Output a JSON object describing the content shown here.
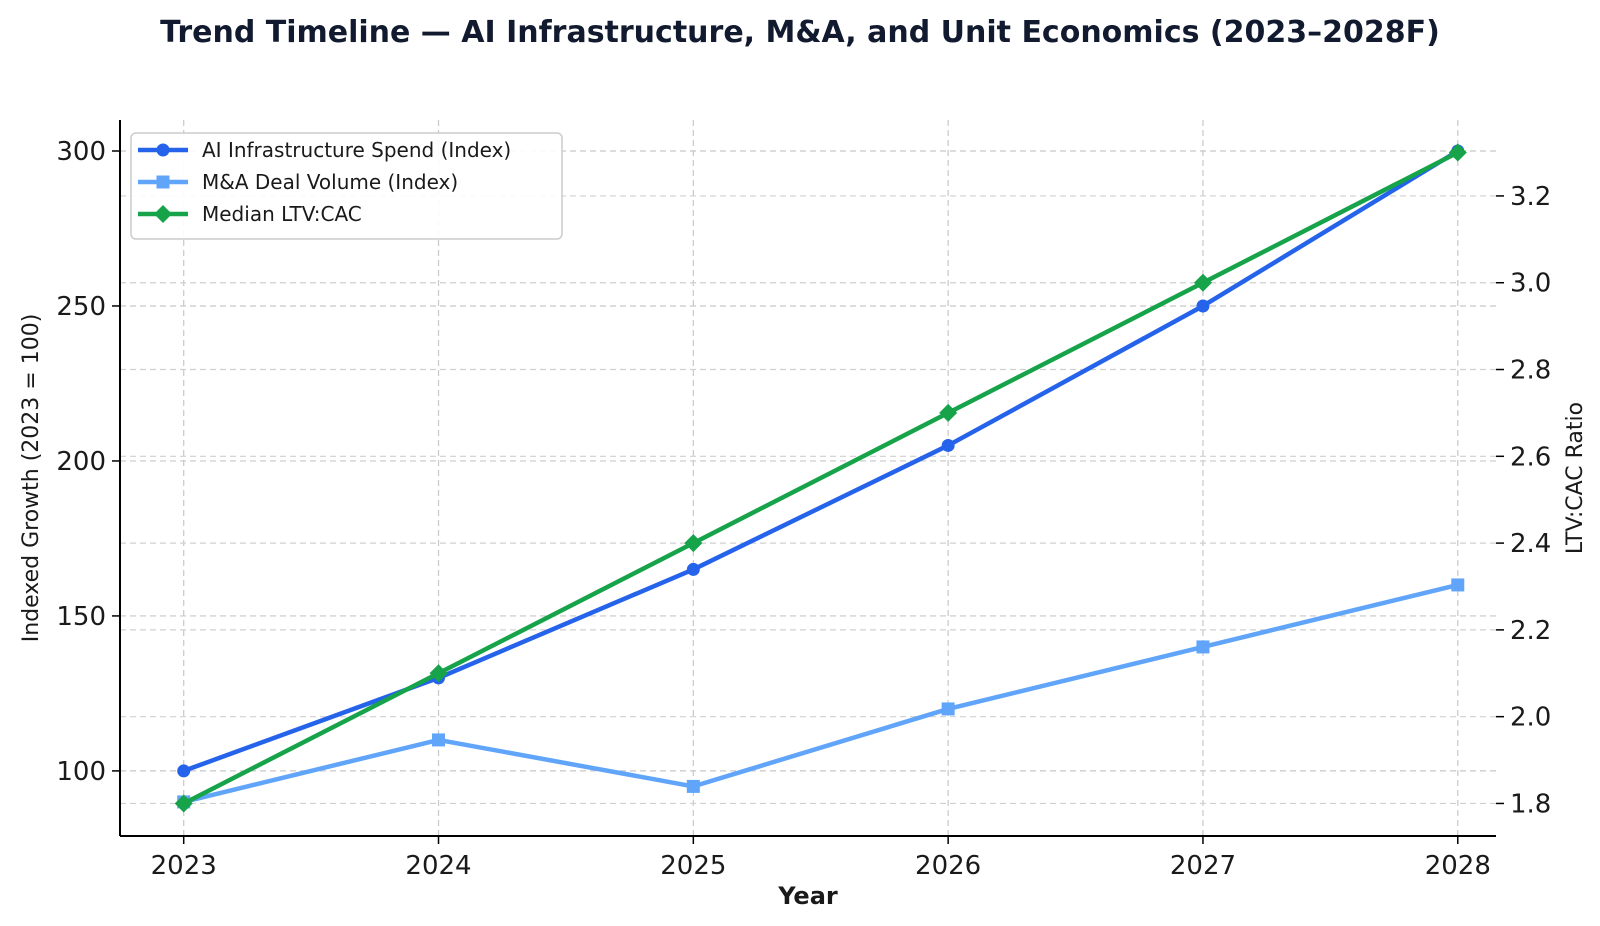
{
  "chart_data": {
    "type": "line",
    "title": "Trend Timeline — AI Infrastructure, M&A, and Unit Economics (2023–2028F)",
    "xlabel": "Year",
    "ylabel": "Indexed Growth (2023 = 100)",
    "y2label": "LTV:CAC Ratio",
    "x": [
      2023,
      2024,
      2025,
      2026,
      2027,
      2028
    ],
    "x_tick_labels": [
      "2023",
      "2024",
      "2025",
      "2026",
      "2027",
      "2028"
    ],
    "ylim": [
      79,
      310
    ],
    "y_ticks": [
      100,
      150,
      200,
      250,
      300
    ],
    "y_tick_labels": [
      "100",
      "150",
      "200",
      "250",
      "300"
    ],
    "y2lim": [
      1.725,
      3.375
    ],
    "y2_ticks": [
      1.8,
      2.0,
      2.2,
      2.4,
      2.6,
      2.8,
      3.0,
      3.2
    ],
    "y2_tick_labels": [
      "1.8",
      "2.0",
      "2.2",
      "2.4",
      "2.6",
      "2.8",
      "3.0",
      "3.2"
    ],
    "grid": true,
    "legend_position": "top-left",
    "series": [
      {
        "name": "AI Infrastructure Spend (Index)",
        "axis": "left",
        "marker": "circle",
        "color": "#2563eb",
        "values": [
          100,
          130,
          165,
          205,
          250,
          300
        ]
      },
      {
        "name": "M&A Deal Volume (Index)",
        "axis": "left",
        "marker": "square",
        "color": "#60a5fa",
        "values": [
          90,
          110,
          95,
          120,
          140,
          160
        ]
      },
      {
        "name": "Median LTV:CAC",
        "axis": "right",
        "marker": "diamond",
        "color": "#16a34a",
        "values": [
          1.8,
          2.1,
          2.4,
          2.7,
          3.0,
          3.3
        ]
      }
    ]
  }
}
